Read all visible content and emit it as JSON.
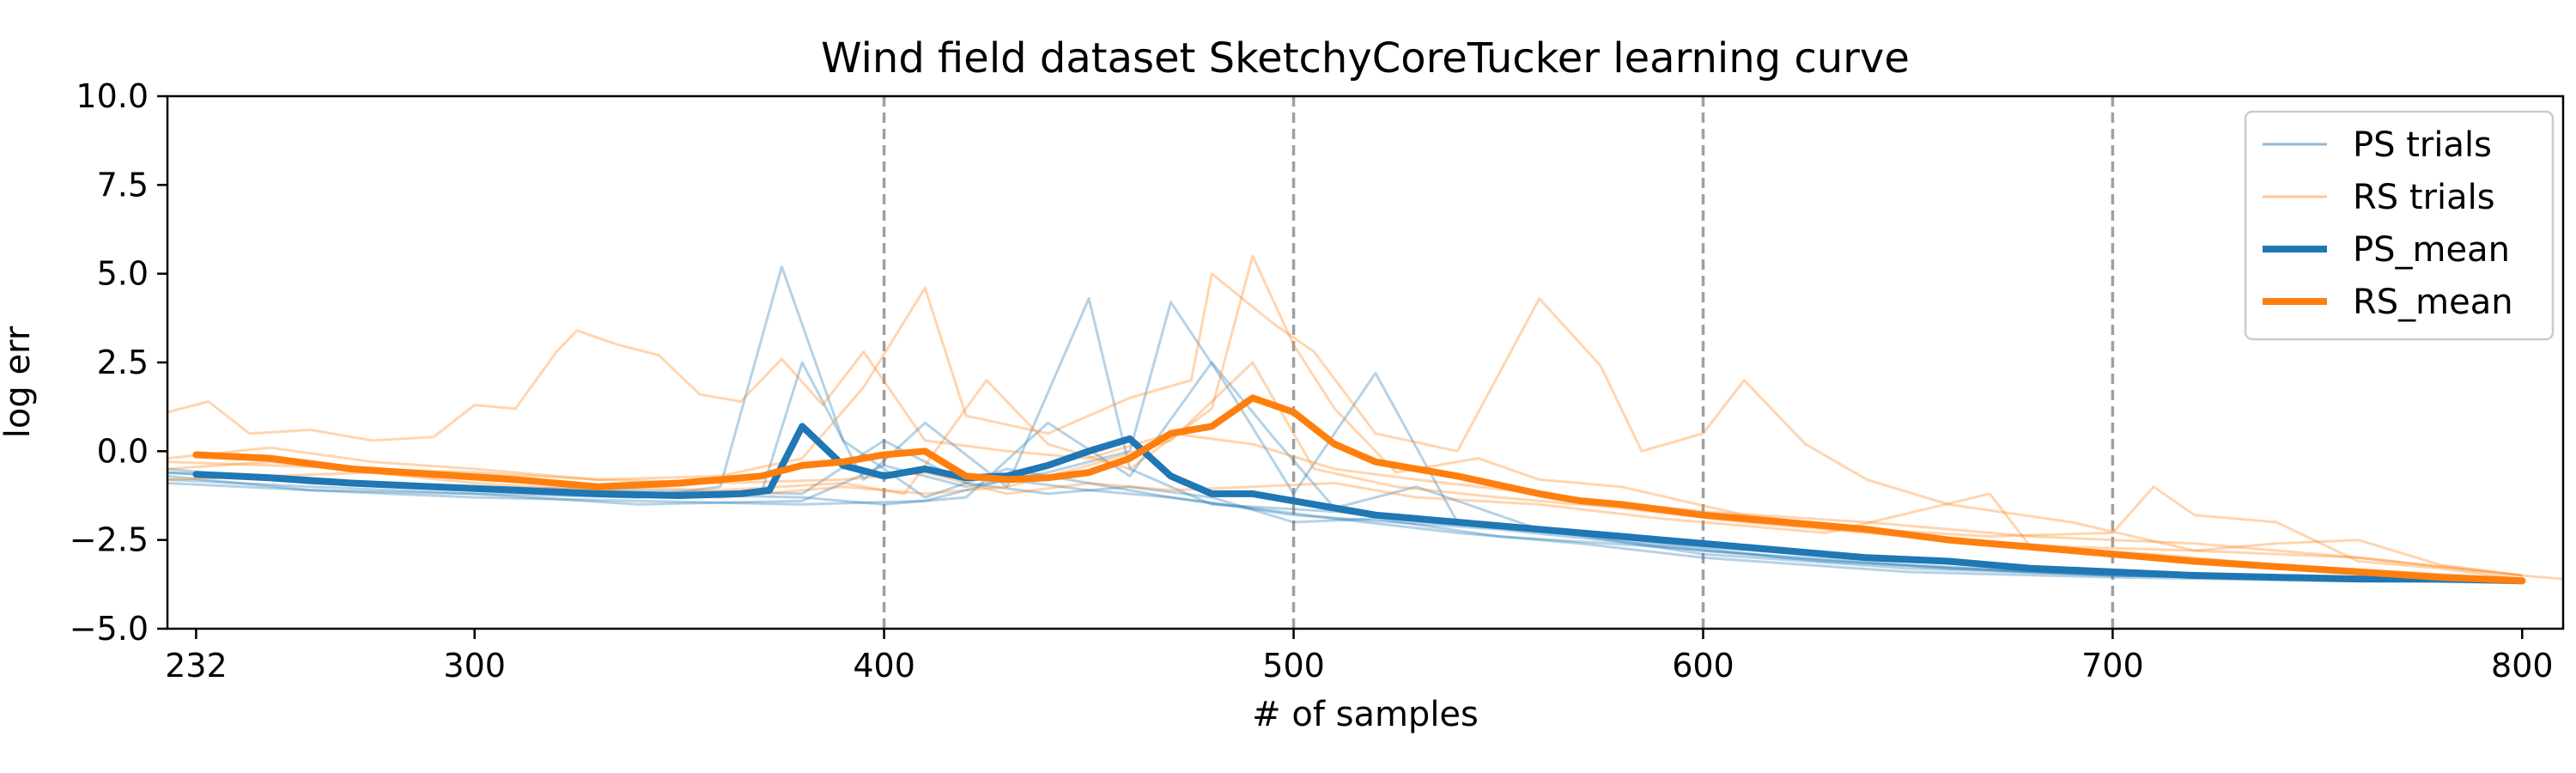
{
  "chart_data": {
    "type": "line",
    "title": "Wind field dataset SketchyCoreTucker learning curve",
    "xlabel": "# of samples",
    "ylabel": "log err",
    "xlim": [
      225,
      810
    ],
    "ylim": [
      -5.0,
      10.0
    ],
    "xticks": [
      232,
      300,
      400,
      500,
      600,
      700,
      800
    ],
    "yticks": [
      -5.0,
      -2.5,
      0.0,
      2.5,
      5.0,
      7.5,
      10.0
    ],
    "ytick_labels": [
      "−5.0",
      "−2.5",
      "0.0",
      "2.5",
      "5.0",
      "7.5",
      "10.0"
    ],
    "vlines": [
      400,
      500,
      600,
      700
    ],
    "legend_position": "top-right",
    "colors": {
      "ps": "#1f77b4",
      "rs": "#ff7f0e",
      "ps_trial": "#8fb9d9",
      "rs_trial": "#ffc79a",
      "vline": "#a0a0a0"
    },
    "legend": [
      {
        "label": "PS trials",
        "color": "#8fb9d9",
        "width": 3
      },
      {
        "label": "RS trials",
        "color": "#ffc79a",
        "width": 3
      },
      {
        "label": "PS_mean",
        "color": "#1f77b4",
        "width": 8
      },
      {
        "label": "RS_mean",
        "color": "#ff7f0e",
        "width": 8
      }
    ],
    "series": [
      {
        "name": "PS_mean",
        "x": [
          232,
          250,
          270,
          290,
          310,
          330,
          350,
          365,
          372,
          380,
          390,
          400,
          410,
          420,
          430,
          440,
          450,
          460,
          470,
          480,
          490,
          500,
          510,
          520,
          540,
          560,
          580,
          600,
          620,
          640,
          660,
          680,
          700,
          720,
          740,
          760,
          780,
          800
        ],
        "y": [
          -0.65,
          -0.75,
          -0.9,
          -1.0,
          -1.1,
          -1.2,
          -1.25,
          -1.2,
          -1.1,
          0.7,
          -0.4,
          -0.7,
          -0.5,
          -0.75,
          -0.7,
          -0.4,
          0.0,
          0.35,
          -0.7,
          -1.2,
          -1.2,
          -1.4,
          -1.6,
          -1.8,
          -2.0,
          -2.2,
          -2.4,
          -2.6,
          -2.8,
          -3.0,
          -3.1,
          -3.3,
          -3.4,
          -3.5,
          -3.55,
          -3.6,
          -3.6,
          -3.65
        ]
      },
      {
        "name": "RS_mean",
        "x": [
          232,
          250,
          270,
          290,
          310,
          330,
          350,
          370,
          380,
          390,
          400,
          410,
          420,
          430,
          440,
          450,
          460,
          470,
          480,
          490,
          500,
          510,
          520,
          540,
          560,
          570,
          580,
          600,
          620,
          640,
          660,
          680,
          700,
          720,
          740,
          760,
          780,
          800
        ],
        "y": [
          -0.1,
          -0.2,
          -0.5,
          -0.65,
          -0.8,
          -1.0,
          -0.9,
          -0.7,
          -0.4,
          -0.3,
          -0.1,
          0.0,
          -0.7,
          -0.8,
          -0.75,
          -0.6,
          -0.2,
          0.5,
          0.7,
          1.5,
          1.1,
          0.2,
          -0.3,
          -0.7,
          -1.2,
          -1.4,
          -1.5,
          -1.8,
          -2.0,
          -2.2,
          -2.5,
          -2.7,
          -2.9,
          -3.1,
          -3.25,
          -3.4,
          -3.55,
          -3.65
        ]
      }
    ],
    "trials": {
      "ps": [
        [
          [
            225,
            -0.6
          ],
          [
            260,
            -0.9
          ],
          [
            300,
            -1.1
          ],
          [
            340,
            -1.3
          ],
          [
            360,
            -1.0
          ],
          [
            375,
            5.2
          ],
          [
            390,
            0.3
          ],
          [
            410,
            -1.3
          ],
          [
            430,
            -0.5
          ],
          [
            450,
            -0.9
          ],
          [
            470,
            -1.3
          ],
          [
            500,
            -1.8
          ],
          [
            550,
            -2.2
          ],
          [
            600,
            -2.8
          ],
          [
            650,
            -3.2
          ],
          [
            700,
            -3.5
          ],
          [
            750,
            -3.6
          ],
          [
            800,
            -3.7
          ]
        ],
        [
          [
            225,
            -0.8
          ],
          [
            260,
            -1.0
          ],
          [
            300,
            -1.2
          ],
          [
            340,
            -1.3
          ],
          [
            370,
            -1.2
          ],
          [
            380,
            2.5
          ],
          [
            395,
            -0.8
          ],
          [
            410,
            0.8
          ],
          [
            430,
            -1.0
          ],
          [
            450,
            4.3
          ],
          [
            460,
            -0.5
          ],
          [
            480,
            -1.5
          ],
          [
            510,
            -1.7
          ],
          [
            550,
            -2.1
          ],
          [
            600,
            -2.7
          ],
          [
            650,
            -3.1
          ],
          [
            700,
            -3.4
          ],
          [
            750,
            -3.6
          ],
          [
            800,
            -3.65
          ]
        ],
        [
          [
            225,
            -0.7
          ],
          [
            260,
            -1.1
          ],
          [
            300,
            -1.2
          ],
          [
            340,
            -1.5
          ],
          [
            380,
            -1.4
          ],
          [
            400,
            -0.4
          ],
          [
            420,
            -1.0
          ],
          [
            440,
            -0.6
          ],
          [
            460,
            0.0
          ],
          [
            470,
            4.2
          ],
          [
            485,
            1.6
          ],
          [
            500,
            -1.2
          ],
          [
            520,
            2.2
          ],
          [
            540,
            -2.0
          ],
          [
            580,
            -2.5
          ],
          [
            620,
            -3.0
          ],
          [
            660,
            -3.3
          ],
          [
            700,
            -3.5
          ],
          [
            760,
            -3.6
          ],
          [
            800,
            -3.7
          ]
        ],
        [
          [
            225,
            -0.5
          ],
          [
            260,
            -0.9
          ],
          [
            300,
            -1.1
          ],
          [
            340,
            -1.2
          ],
          [
            380,
            -1.3
          ],
          [
            400,
            -1.5
          ],
          [
            420,
            -1.3
          ],
          [
            440,
            0.8
          ],
          [
            460,
            -0.7
          ],
          [
            480,
            2.5
          ],
          [
            495,
            0.4
          ],
          [
            510,
            -1.6
          ],
          [
            530,
            -1.0
          ],
          [
            560,
            -2.2
          ],
          [
            600,
            -2.9
          ],
          [
            650,
            -3.3
          ],
          [
            700,
            -3.5
          ],
          [
            750,
            -3.6
          ],
          [
            800,
            -3.7
          ]
        ],
        [
          [
            225,
            -0.9
          ],
          [
            260,
            -1.1
          ],
          [
            300,
            -1.3
          ],
          [
            340,
            -1.4
          ],
          [
            380,
            -1.5
          ],
          [
            410,
            -1.4
          ],
          [
            430,
            -0.8
          ],
          [
            450,
            -1.1
          ],
          [
            470,
            -1.3
          ],
          [
            490,
            -1.6
          ],
          [
            510,
            -1.9
          ],
          [
            540,
            -2.3
          ],
          [
            570,
            -2.6
          ],
          [
            600,
            -3.0
          ],
          [
            650,
            -3.4
          ],
          [
            700,
            -3.55
          ],
          [
            750,
            -3.65
          ],
          [
            800,
            -3.7
          ]
        ],
        [
          [
            225,
            -0.6
          ],
          [
            260,
            -0.8
          ],
          [
            300,
            -1.0
          ],
          [
            340,
            -1.1
          ],
          [
            380,
            -1.2
          ],
          [
            400,
            0.3
          ],
          [
            420,
            -0.9
          ],
          [
            440,
            -1.2
          ],
          [
            460,
            -1.0
          ],
          [
            480,
            -1.3
          ],
          [
            500,
            -2.0
          ],
          [
            520,
            -1.9
          ],
          [
            550,
            -2.4
          ],
          [
            590,
            -2.7
          ],
          [
            630,
            -3.1
          ],
          [
            680,
            -3.4
          ],
          [
            730,
            -3.55
          ],
          [
            780,
            -3.65
          ],
          [
            800,
            -3.7
          ]
        ]
      ],
      "rs": [
        [
          [
            225,
            1.1
          ],
          [
            235,
            1.4
          ],
          [
            245,
            0.5
          ],
          [
            260,
            0.6
          ],
          [
            275,
            0.3
          ],
          [
            290,
            0.4
          ],
          [
            300,
            1.3
          ],
          [
            310,
            1.2
          ],
          [
            320,
            2.8
          ],
          [
            325,
            3.4
          ],
          [
            335,
            3.0
          ],
          [
            345,
            2.7
          ],
          [
            355,
            1.6
          ],
          [
            365,
            1.4
          ],
          [
            375,
            2.6
          ],
          [
            385,
            1.3
          ],
          [
            395,
            2.8
          ],
          [
            410,
            0.3
          ],
          [
            430,
            0.0
          ],
          [
            450,
            -0.2
          ],
          [
            470,
            0.5
          ],
          [
            490,
            0.2
          ],
          [
            510,
            -0.5
          ],
          [
            530,
            -0.8
          ],
          [
            560,
            -1.2
          ],
          [
            600,
            -1.7
          ],
          [
            640,
            -2.0
          ],
          [
            680,
            -2.4
          ],
          [
            720,
            -2.6
          ],
          [
            760,
            -3.0
          ],
          [
            800,
            -3.5
          ],
          [
            810,
            -3.6
          ]
        ],
        [
          [
            225,
            -0.2
          ],
          [
            250,
            0.1
          ],
          [
            275,
            -0.3
          ],
          [
            300,
            -0.5
          ],
          [
            330,
            -0.8
          ],
          [
            360,
            -0.7
          ],
          [
            380,
            -0.2
          ],
          [
            395,
            1.8
          ],
          [
            410,
            4.6
          ],
          [
            420,
            1.0
          ],
          [
            440,
            0.5
          ],
          [
            460,
            1.5
          ],
          [
            475,
            2.0
          ],
          [
            480,
            5.0
          ],
          [
            495,
            3.6
          ],
          [
            505,
            2.8
          ],
          [
            520,
            0.5
          ],
          [
            540,
            0.0
          ],
          [
            560,
            4.3
          ],
          [
            575,
            2.4
          ],
          [
            585,
            0.0
          ],
          [
            600,
            0.5
          ],
          [
            610,
            2.0
          ],
          [
            625,
            0.2
          ],
          [
            640,
            -0.8
          ],
          [
            660,
            -1.5
          ],
          [
            690,
            -2.0
          ],
          [
            720,
            -2.8
          ],
          [
            760,
            -3.0
          ],
          [
            800,
            -3.5
          ]
        ],
        [
          [
            225,
            -0.5
          ],
          [
            250,
            -0.3
          ],
          [
            275,
            -0.6
          ],
          [
            300,
            -0.8
          ],
          [
            330,
            -1.0
          ],
          [
            360,
            -1.1
          ],
          [
            390,
            -0.9
          ],
          [
            405,
            -1.2
          ],
          [
            425,
            2.0
          ],
          [
            440,
            0.2
          ],
          [
            460,
            -0.5
          ],
          [
            480,
            1.2
          ],
          [
            490,
            5.5
          ],
          [
            500,
            3.0
          ],
          [
            510,
            1.2
          ],
          [
            525,
            -0.6
          ],
          [
            545,
            -0.2
          ],
          [
            560,
            -0.8
          ],
          [
            580,
            -1.0
          ],
          [
            610,
            -1.8
          ],
          [
            640,
            -2.2
          ],
          [
            670,
            -2.4
          ],
          [
            700,
            -2.3
          ],
          [
            710,
            -1.0
          ],
          [
            720,
            -1.8
          ],
          [
            740,
            -2.0
          ],
          [
            760,
            -3.1
          ],
          [
            780,
            -3.3
          ],
          [
            800,
            -3.6
          ]
        ],
        [
          [
            225,
            -0.8
          ],
          [
            250,
            -0.7
          ],
          [
            275,
            -0.6
          ],
          [
            300,
            -0.9
          ],
          [
            330,
            -1.1
          ],
          [
            360,
            -1.3
          ],
          [
            390,
            -1.0
          ],
          [
            410,
            -1.2
          ],
          [
            430,
            -1.0
          ],
          [
            450,
            -0.4
          ],
          [
            470,
            0.3
          ],
          [
            490,
            2.5
          ],
          [
            505,
            -0.5
          ],
          [
            525,
            -1.0
          ],
          [
            550,
            -1.3
          ],
          [
            580,
            -1.6
          ],
          [
            610,
            -2.0
          ],
          [
            650,
            -2.4
          ],
          [
            690,
            -2.7
          ],
          [
            720,
            -2.8
          ],
          [
            740,
            -2.6
          ],
          [
            760,
            -2.5
          ],
          [
            780,
            -3.2
          ],
          [
            800,
            -3.5
          ]
        ],
        [
          [
            225,
            -0.3
          ],
          [
            250,
            -0.4
          ],
          [
            275,
            -0.5
          ],
          [
            300,
            -0.6
          ],
          [
            330,
            -0.8
          ],
          [
            360,
            -0.9
          ],
          [
            390,
            -0.8
          ],
          [
            410,
            -0.6
          ],
          [
            430,
            -1.2
          ],
          [
            450,
            -0.9
          ],
          [
            470,
            -1.1
          ],
          [
            490,
            -1.0
          ],
          [
            510,
            -0.9
          ],
          [
            530,
            -1.3
          ],
          [
            560,
            -1.5
          ],
          [
            590,
            -1.9
          ],
          [
            630,
            -2.3
          ],
          [
            670,
            -1.2
          ],
          [
            680,
            -2.7
          ],
          [
            710,
            -2.9
          ],
          [
            740,
            -3.2
          ],
          [
            770,
            -3.4
          ],
          [
            800,
            -3.6
          ]
        ]
      ]
    }
  }
}
